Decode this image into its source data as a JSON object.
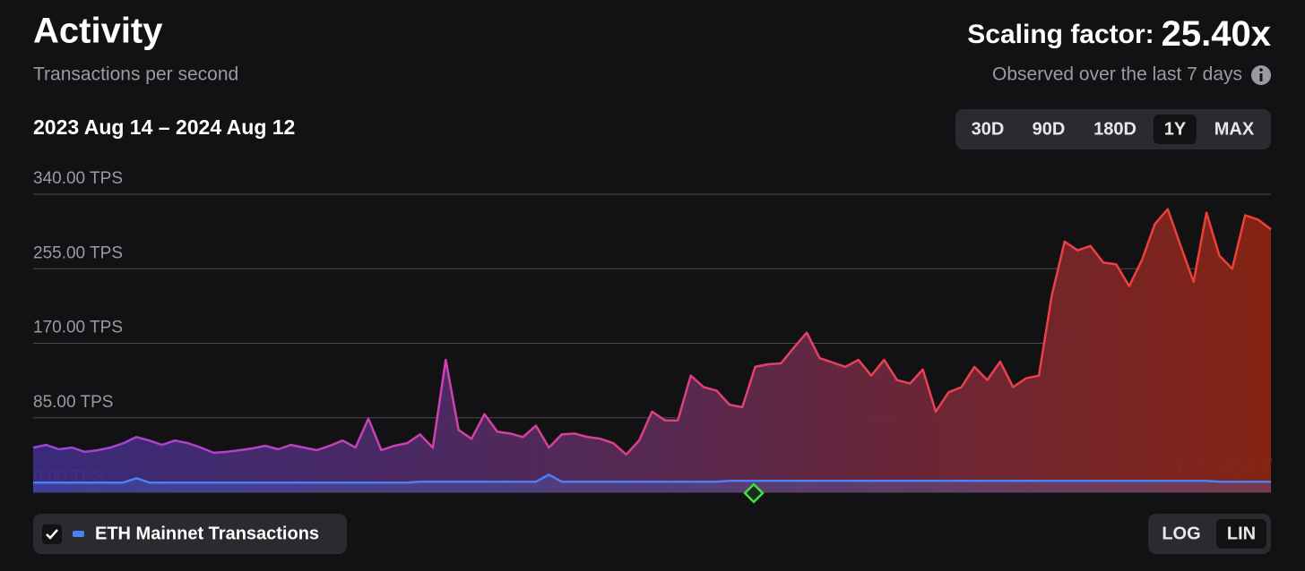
{
  "header": {
    "title": "Activity",
    "subtitle": "Transactions per second",
    "scaling_label": "Scaling factor:",
    "scaling_value": "25.40x",
    "observed": "Observed over the last 7 days",
    "date_range": "2023 Aug 14 – 2024 Aug 12"
  },
  "controls": {
    "ranges": [
      "30D",
      "90D",
      "180D",
      "1Y",
      "MAX"
    ],
    "active_range": "1Y",
    "scales": [
      "LOG",
      "LIN"
    ],
    "active_scale": "LIN"
  },
  "chart_data": {
    "type": "area",
    "ylim": [
      0,
      340
    ],
    "yticks": [
      {
        "value": 0,
        "label": "0.00 TPS"
      },
      {
        "value": 85,
        "label": "85.00 TPS"
      },
      {
        "value": 170,
        "label": "170.00 TPS"
      },
      {
        "value": 255,
        "label": "255.00 TPS"
      },
      {
        "value": 340,
        "label": "340.00 TPS"
      }
    ],
    "grid": true,
    "log_scale": false,
    "watermark": "L2BEAT",
    "series": [
      {
        "colors": [
          "#9a45d8",
          "#d040b0",
          "#e8405a",
          "#ee4030"
        ],
        "values": [
          51,
          54,
          49,
          51,
          46,
          48,
          51,
          56,
          63,
          59,
          54,
          59,
          56,
          51,
          45,
          46,
          48,
          50,
          53,
          49,
          54,
          51,
          48,
          53,
          59,
          51,
          84,
          48,
          53,
          56,
          66,
          51,
          151,
          71,
          61,
          89,
          69,
          67,
          63,
          76,
          51,
          66,
          67,
          63,
          61,
          56,
          43,
          59,
          92,
          82,
          82,
          133,
          120,
          116,
          100,
          97,
          143,
          146,
          147,
          165,
          182,
          153,
          148,
          143,
          151,
          133,
          151,
          128,
          124,
          140,
          92,
          114,
          120,
          143,
          128,
          149,
          120,
          130,
          133,
          224,
          286,
          276,
          281,
          262,
          260,
          235,
          265,
          306,
          323,
          281,
          240,
          319,
          270,
          255,
          316,
          311,
          300
        ]
      },
      {
        "name": "ETH Mainnet Transactions",
        "color": "#4b7ff5",
        "values": [
          11,
          11,
          11,
          11,
          11,
          11,
          11,
          11,
          16,
          11,
          11,
          11,
          11,
          11,
          11,
          11,
          11,
          11,
          11,
          11,
          11,
          11,
          11,
          11,
          11,
          11,
          11,
          11,
          11,
          11,
          12,
          12,
          12,
          12,
          12,
          12,
          12,
          12,
          12,
          12,
          20,
          12,
          12,
          12,
          12,
          12,
          12,
          12,
          12,
          12,
          12,
          12,
          12,
          12,
          13,
          13,
          13,
          13,
          13,
          13,
          13,
          13,
          13,
          13,
          13,
          13,
          13,
          13,
          13,
          13,
          13,
          13,
          13,
          13,
          13,
          13,
          13,
          13,
          13,
          13,
          13,
          13,
          13,
          13,
          13,
          13,
          13,
          13,
          13,
          13,
          13,
          13,
          12,
          12,
          12,
          12,
          12
        ]
      }
    ]
  }
}
